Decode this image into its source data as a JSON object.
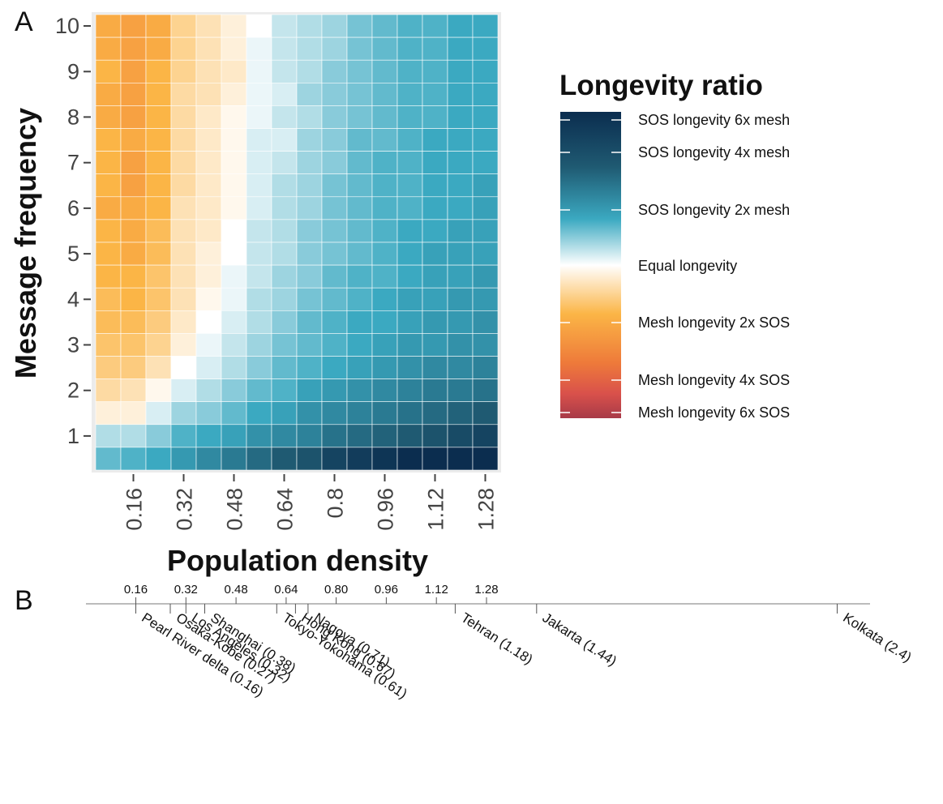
{
  "chart_data": [
    {
      "panel": "A",
      "type": "heatmap",
      "xlabel": "Population density",
      "ylabel": "Message frequency",
      "x_ticks": [
        "0.16",
        "0.32",
        "0.48",
        "0.64",
        "0.8",
        "0.96",
        "1.12",
        "1.28"
      ],
      "y_ticks": [
        "1",
        "2",
        "3",
        "4",
        "5",
        "6",
        "7",
        "8",
        "9",
        "10"
      ],
      "legend": {
        "title": "Longevity ratio",
        "labels": [
          "SOS longevity 6x mesh",
          "SOS longevity 4x mesh",
          "SOS longevity 2x mesh",
          "Equal longevity",
          "Mesh longevity 2x SOS",
          "Mesh longevity 4x SOS",
          "Mesh longevity 6x SOS"
        ],
        "colors": [
          "#0b2d4f",
          "#1f5a72",
          "#3ba9c1",
          "#ffffff",
          "#fbb546",
          "#ee7a3a",
          "#d9514b",
          "#a83a48"
        ]
      },
      "x_values": [
        0.08,
        0.16,
        0.24,
        0.32,
        0.4,
        0.48,
        0.56,
        0.64,
        0.72,
        0.8,
        0.88,
        0.96,
        1.04,
        1.12,
        1.2,
        1.28
      ],
      "y_values": [
        0.5,
        1,
        1.5,
        2,
        2.5,
        3,
        3.5,
        4,
        4.5,
        5,
        5.5,
        6,
        6.5,
        7,
        7.5,
        8,
        8.5,
        9,
        9.5,
        10
      ],
      "log2_ratio_rows_top_to_bottom": [
        [
          -1.1,
          -1.2,
          -1.1,
          -0.6,
          -0.4,
          -0.2,
          0.0,
          0.3,
          0.4,
          0.5,
          0.7,
          0.8,
          0.9,
          0.9,
          1.0,
          1.0
        ],
        [
          -1.1,
          -1.2,
          -1.1,
          -0.6,
          -0.4,
          -0.2,
          0.1,
          0.3,
          0.4,
          0.5,
          0.7,
          0.8,
          0.9,
          0.9,
          1.0,
          1.0
        ],
        [
          -1.0,
          -1.2,
          -1.0,
          -0.6,
          -0.4,
          -0.3,
          0.1,
          0.3,
          0.4,
          0.6,
          0.7,
          0.8,
          0.9,
          0.9,
          1.0,
          1.0
        ],
        [
          -1.1,
          -1.2,
          -1.0,
          -0.5,
          -0.4,
          -0.2,
          0.1,
          0.2,
          0.5,
          0.6,
          0.7,
          0.8,
          0.9,
          0.9,
          1.0,
          1.0
        ],
        [
          -1.1,
          -1.2,
          -1.0,
          -0.5,
          -0.3,
          -0.1,
          0.1,
          0.3,
          0.4,
          0.6,
          0.7,
          0.8,
          0.9,
          0.9,
          1.0,
          1.0
        ],
        [
          -1.0,
          -1.1,
          -1.0,
          -0.5,
          -0.3,
          -0.1,
          0.2,
          0.2,
          0.5,
          0.6,
          0.8,
          0.8,
          0.9,
          1.0,
          1.0,
          1.0
        ],
        [
          -1.0,
          -1.2,
          -1.0,
          -0.5,
          -0.3,
          -0.1,
          0.2,
          0.3,
          0.5,
          0.6,
          0.8,
          0.9,
          0.9,
          1.0,
          1.0,
          1.0
        ],
        [
          -1.0,
          -1.2,
          -1.0,
          -0.5,
          -0.3,
          -0.1,
          0.2,
          0.4,
          0.5,
          0.7,
          0.8,
          0.9,
          0.9,
          1.0,
          1.0,
          1.1
        ],
        [
          -1.1,
          -1.1,
          -1.0,
          -0.4,
          -0.3,
          -0.1,
          0.2,
          0.4,
          0.5,
          0.7,
          0.8,
          0.9,
          0.9,
          1.0,
          1.0,
          1.1
        ],
        [
          -1.0,
          -1.1,
          -0.9,
          -0.4,
          -0.3,
          0.0,
          0.3,
          0.4,
          0.6,
          0.7,
          0.8,
          0.9,
          1.0,
          1.0,
          1.1,
          1.1
        ],
        [
          -1.0,
          -1.1,
          -0.9,
          -0.4,
          -0.2,
          0.0,
          0.3,
          0.4,
          0.6,
          0.7,
          0.8,
          0.9,
          1.0,
          1.1,
          1.1,
          1.1
        ],
        [
          -1.0,
          -1.0,
          -0.8,
          -0.4,
          -0.2,
          0.1,
          0.3,
          0.5,
          0.6,
          0.8,
          0.9,
          0.9,
          1.0,
          1.1,
          1.1,
          1.2
        ],
        [
          -0.9,
          -1.0,
          -0.8,
          -0.4,
          -0.1,
          0.1,
          0.4,
          0.5,
          0.7,
          0.8,
          0.9,
          1.0,
          1.1,
          1.1,
          1.2,
          1.2
        ],
        [
          -0.9,
          -0.9,
          -0.7,
          -0.3,
          0.0,
          0.2,
          0.4,
          0.6,
          0.8,
          0.9,
          1.0,
          1.0,
          1.1,
          1.2,
          1.2,
          1.3
        ],
        [
          -0.8,
          -0.8,
          -0.6,
          -0.2,
          0.1,
          0.3,
          0.5,
          0.7,
          0.8,
          0.9,
          1.0,
          1.1,
          1.2,
          1.2,
          1.3,
          1.3
        ],
        [
          -0.7,
          -0.7,
          -0.4,
          0.0,
          0.2,
          0.4,
          0.6,
          0.8,
          0.9,
          1.0,
          1.1,
          1.2,
          1.3,
          1.4,
          1.4,
          1.5
        ],
        [
          -0.5,
          -0.4,
          -0.1,
          0.2,
          0.4,
          0.6,
          0.8,
          0.9,
          1.1,
          1.2,
          1.3,
          1.4,
          1.5,
          1.6,
          1.6,
          1.7
        ],
        [
          -0.2,
          -0.2,
          0.2,
          0.5,
          0.6,
          0.8,
          1.0,
          1.1,
          1.3,
          1.4,
          1.5,
          1.6,
          1.7,
          1.8,
          1.9,
          2.0
        ],
        [
          0.4,
          0.4,
          0.6,
          0.9,
          1.0,
          1.1,
          1.3,
          1.4,
          1.5,
          1.7,
          1.8,
          1.9,
          2.0,
          2.1,
          2.2,
          2.3
        ],
        [
          0.8,
          0.9,
          1.0,
          1.2,
          1.4,
          1.6,
          1.8,
          2.0,
          2.1,
          2.3,
          2.4,
          2.5,
          2.6,
          2.6,
          2.6,
          2.6
        ]
      ]
    },
    {
      "panel": "B",
      "type": "scatter",
      "xlabel": "",
      "x_ticks": [
        "0.16",
        "0.32",
        "0.48",
        "0.64",
        "0.80",
        "0.96",
        "1.12",
        "1.28"
      ],
      "points": [
        {
          "x": 0.16,
          "label": "Pearl River delta (0.16)"
        },
        {
          "x": 0.27,
          "label": "Osaka-Kobe (0.27)"
        },
        {
          "x": 0.32,
          "label": "Los Angeles (0.32)"
        },
        {
          "x": 0.38,
          "label": "Shanghai (0.38)"
        },
        {
          "x": 0.61,
          "label": "Tokyo-Yokohama (0.61)"
        },
        {
          "x": 0.67,
          "label": "Hong Kong (0.67)"
        },
        {
          "x": 0.71,
          "label": "Nagoya (0.71)"
        },
        {
          "x": 1.18,
          "label": "Tehran (1.18)"
        },
        {
          "x": 1.44,
          "label": "Jakarta (1.44)"
        },
        {
          "x": 2.4,
          "label": "Kolkata (2.4)"
        }
      ]
    }
  ],
  "panel_labels": {
    "a": "A",
    "b": "B"
  }
}
